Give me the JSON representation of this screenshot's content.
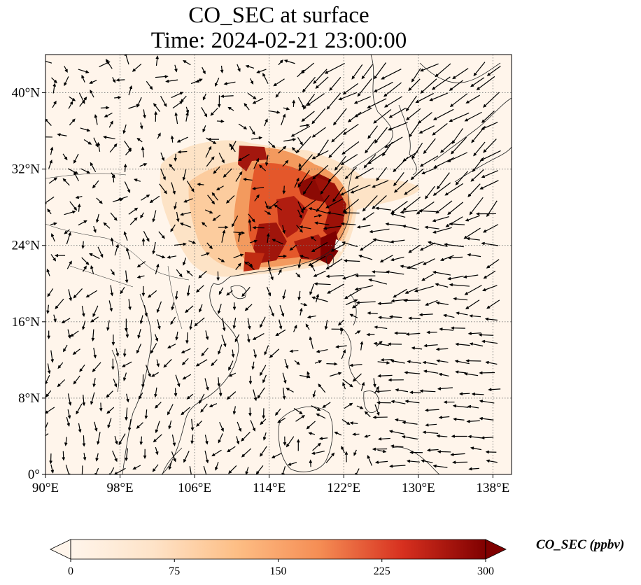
{
  "title": {
    "line1": "CO_SEC at surface",
    "line2": "Time: 2024-02-21 23:00:00"
  },
  "map": {
    "lon_range": [
      90,
      140
    ],
    "lat_range": [
      0,
      44
    ],
    "x_ticks": [
      "90°E",
      "98°E",
      "106°E",
      "114°E",
      "122°E",
      "130°E",
      "138°E"
    ],
    "x_tick_values": [
      90,
      98,
      106,
      114,
      122,
      130,
      138
    ],
    "y_ticks": [
      "0°",
      "8°N",
      "16°N",
      "24°N",
      "32°N",
      "40°N"
    ],
    "y_tick_values": [
      0,
      8,
      16,
      24,
      32,
      40
    ],
    "gridlines": true,
    "background_color": "#fff5eb",
    "plume_center_lon_lat": [
      116,
      29
    ]
  },
  "colorbar": {
    "label": "CO_SEC (ppbv)",
    "ticks": [
      "0",
      "75",
      "150",
      "225",
      "300"
    ],
    "tick_values": [
      0,
      75,
      150,
      225,
      300
    ],
    "range": [
      0,
      300
    ],
    "colormap": "OrRd-like",
    "colors": [
      "#fff5eb",
      "#fdd9b0",
      "#fdab67",
      "#f16813",
      "#c93804",
      "#7f0000"
    ],
    "extend": "both"
  }
}
